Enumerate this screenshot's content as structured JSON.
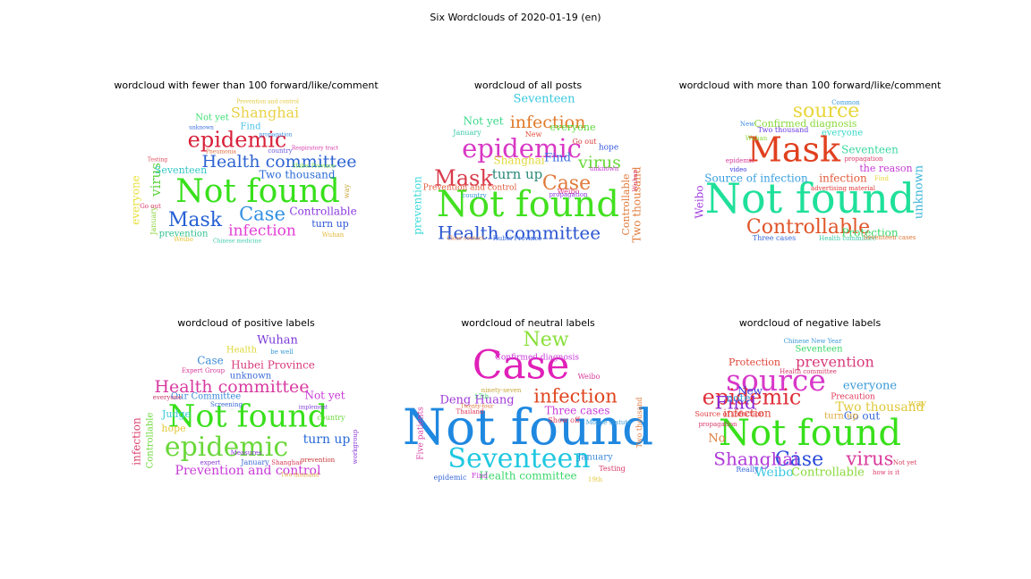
{
  "chart_data": {
    "type": "wordcloud",
    "title": "Six Wordclouds of 2020-01-19 (en)",
    "panels": [
      {
        "title": "wordcloud with fewer than 100 forward/like/comment",
        "words": [
          {
            "text": "Not found",
            "color": "#38e01b"
          },
          {
            "text": "epidemic",
            "color": "#d8203a"
          },
          {
            "text": "Health committee",
            "color": "#2d63d2"
          },
          {
            "text": "Mask",
            "color": "#2460d4"
          },
          {
            "text": "Case",
            "color": "#2f8fe0"
          },
          {
            "text": "infection",
            "color": "#e53fd6"
          },
          {
            "text": "Shanghai",
            "color": "#e8d248"
          },
          {
            "text": "Controllable",
            "color": "#8b38e0"
          },
          {
            "text": "Two thousand",
            "color": "#2a6bd6"
          },
          {
            "text": "virus",
            "color": "#5dd13c"
          },
          {
            "text": "turn up",
            "color": "#2f58d8"
          },
          {
            "text": "Seventeen",
            "color": "#34c6c8"
          },
          {
            "text": "prevention",
            "color": "#2fc08e"
          },
          {
            "text": "Not yet",
            "color": "#3fe075"
          },
          {
            "text": "Find",
            "color": "#4fc2e8"
          },
          {
            "text": "everyone",
            "color": "#e8e039"
          },
          {
            "text": "January",
            "color": "#8ad43c"
          },
          {
            "text": "Wuhan",
            "color": "#e0b83a"
          },
          {
            "text": "Weibo",
            "color": "#e8c63a"
          },
          {
            "text": "Testing",
            "color": "#e04a5a"
          },
          {
            "text": "Go out",
            "color": "#d83a6a"
          },
          {
            "text": "country",
            "color": "#6a5ae0"
          },
          {
            "text": "Respiratory tract",
            "color": "#d83aa8"
          },
          {
            "text": "way",
            "color": "#c8a83a"
          },
          {
            "text": "propagation",
            "color": "#3a8ae0"
          },
          {
            "text": "Prevention and control",
            "color": "#e0c83a"
          },
          {
            "text": "Hubei Province",
            "color": "#6ad83a"
          },
          {
            "text": "unknown",
            "color": "#3a6ae0"
          },
          {
            "text": "Pneumonia",
            "color": "#e06a3a"
          },
          {
            "text": "Chinese medicine",
            "color": "#3ac8a8"
          }
        ]
      },
      {
        "title": "wordcloud of all posts",
        "words": [
          {
            "text": "Not found",
            "color": "#42e020"
          },
          {
            "text": "epidemic",
            "color": "#d838c4"
          },
          {
            "text": "Health committee",
            "color": "#2a55cf"
          },
          {
            "text": "Mask",
            "color": "#d83a4a"
          },
          {
            "text": "Case",
            "color": "#e07a3a"
          },
          {
            "text": "infection",
            "color": "#e07a2a"
          },
          {
            "text": "virus",
            "color": "#6ad83a"
          },
          {
            "text": "Controllable",
            "color": "#e07a3a"
          },
          {
            "text": "Two thousand",
            "color": "#e07a3a"
          },
          {
            "text": "Seventeen",
            "color": "#3ac8e0"
          },
          {
            "text": "Not yet",
            "color": "#3ad88a"
          },
          {
            "text": "everyone",
            "color": "#5ad83a"
          },
          {
            "text": "Shanghai",
            "color": "#e0d83a"
          },
          {
            "text": "turn up",
            "color": "#2a8a7a"
          },
          {
            "text": "Find",
            "color": "#3a6ae0"
          },
          {
            "text": "prevention",
            "color": "#3ad8d8"
          },
          {
            "text": "Prevention and control",
            "color": "#e05a3a"
          },
          {
            "text": "hope",
            "color": "#3a5ae0"
          },
          {
            "text": "Go out",
            "color": "#d83a3a"
          },
          {
            "text": "Weibo",
            "color": "#e03a8a"
          },
          {
            "text": "Wuhan",
            "color": "#d83a6a"
          },
          {
            "text": "January",
            "color": "#3ac8a8"
          },
          {
            "text": "New",
            "color": "#e04a3a"
          },
          {
            "text": "country",
            "color": "#3a9ad8"
          },
          {
            "text": "propagation",
            "color": "#8a3ae0"
          },
          {
            "text": "unknown",
            "color": "#c83ad8"
          },
          {
            "text": "Hubei Province",
            "color": "#3a6ae0"
          },
          {
            "text": "Close contact",
            "color": "#e07a3a"
          }
        ]
      },
      {
        "title": "wordcloud with more than 100 forward/like/comment",
        "words": [
          {
            "text": "Not found",
            "color": "#1fe09a"
          },
          {
            "text": "Mask",
            "color": "#e0401f"
          },
          {
            "text": "source",
            "color": "#e8d63a"
          },
          {
            "text": "Controllable",
            "color": "#e0552a"
          },
          {
            "text": "Confirmed diagnosis",
            "color": "#8ad83a"
          },
          {
            "text": "Seventeen",
            "color": "#3ad8a0"
          },
          {
            "text": "Source of infection",
            "color": "#3aa0e0"
          },
          {
            "text": "infection",
            "color": "#e05a3a"
          },
          {
            "text": "Protection",
            "color": "#3ad86a"
          },
          {
            "text": "unknown",
            "color": "#3ab4d8"
          },
          {
            "text": "the reason",
            "color": "#c83ad8"
          },
          {
            "text": "Weibo",
            "color": "#a03ae0"
          },
          {
            "text": "everyone",
            "color": "#3ad8c8"
          },
          {
            "text": "Two thousand",
            "color": "#6a3ae0"
          },
          {
            "text": "video",
            "color": "#3a3ae0"
          },
          {
            "text": "epidemic",
            "color": "#d83a9a"
          },
          {
            "text": "New",
            "color": "#3a8ae0"
          },
          {
            "text": "Three cases",
            "color": "#3a6ad8"
          },
          {
            "text": "Health committee",
            "color": "#3ac8a8"
          },
          {
            "text": "Seventeen cases",
            "color": "#e07a3a"
          },
          {
            "text": "propagation",
            "color": "#d83a6a"
          },
          {
            "text": "advertising material",
            "color": "#e03a3a"
          },
          {
            "text": "Find",
            "color": "#e8d63a"
          },
          {
            "text": "Common",
            "color": "#3a9ae0"
          },
          {
            "text": "Wuhan",
            "color": "#8ad83a"
          }
        ]
      },
      {
        "title": "wordcloud of positive labels",
        "words": [
          {
            "text": "Not found",
            "color": "#38e01b"
          },
          {
            "text": "epidemic",
            "color": "#6ad83a"
          },
          {
            "text": "Health committee",
            "color": "#d83aa0"
          },
          {
            "text": "Prevention and control",
            "color": "#c83ad8"
          },
          {
            "text": "turn up",
            "color": "#2a6ad8"
          },
          {
            "text": "Hubei Province",
            "color": "#d83a7a"
          },
          {
            "text": "Wuhan",
            "color": "#7a3ad8"
          },
          {
            "text": "Case",
            "color": "#3a8ad8"
          },
          {
            "text": "Controllable",
            "color": "#6ad83a"
          },
          {
            "text": "infection",
            "color": "#d83a6a"
          },
          {
            "text": "Not yet",
            "color": "#c83ad8"
          },
          {
            "text": "Our Committee",
            "color": "#3a8ad8"
          },
          {
            "text": "unknown",
            "color": "#3a6ad8"
          },
          {
            "text": "Health",
            "color": "#e0d83a"
          },
          {
            "text": "hope",
            "color": "#e0c83a"
          },
          {
            "text": "Judge",
            "color": "#3ac8d8"
          },
          {
            "text": "everyone",
            "color": "#c83a6a"
          },
          {
            "text": "country",
            "color": "#6ad83a"
          },
          {
            "text": "January",
            "color": "#3a6ad8"
          },
          {
            "text": "Measures",
            "color": "#8a3ad8"
          },
          {
            "text": "Expert Group",
            "color": "#d83a9a"
          },
          {
            "text": "Shanghai",
            "color": "#d83a5a"
          },
          {
            "text": "be well",
            "color": "#3a9ad8"
          },
          {
            "text": "Screening",
            "color": "#3a6ad8"
          },
          {
            "text": "expert",
            "color": "#8a3ad8"
          },
          {
            "text": "implement",
            "color": "#7a3ad8"
          },
          {
            "text": "prevention",
            "color": "#c83a3a"
          },
          {
            "text": "Two thousand",
            "color": "#e0a83a"
          },
          {
            "text": "workgroup",
            "color": "#8a3ad8"
          }
        ]
      },
      {
        "title": "wordcloud of neutral labels",
        "words": [
          {
            "text": "Not found",
            "color": "#1f88e0"
          },
          {
            "text": "Case",
            "color": "#e01fb8"
          },
          {
            "text": "Seventeen",
            "color": "#1fc8e0"
          },
          {
            "text": "infection",
            "color": "#e0451f"
          },
          {
            "text": "New",
            "color": "#8ae03a"
          },
          {
            "text": "Deng Huang",
            "color": "#a03ad8"
          },
          {
            "text": "Three cases",
            "color": "#c83ad8"
          },
          {
            "text": "Health committee",
            "color": "#3ad86a"
          },
          {
            "text": "Confirmed diagnosis",
            "color": "#c83ad8"
          },
          {
            "text": "Thailand",
            "color": "#e03a5a"
          },
          {
            "text": "January",
            "color": "#3a8ad8"
          },
          {
            "text": "Testing",
            "color": "#d83a6a"
          },
          {
            "text": "Weibo",
            "color": "#d83a9a"
          },
          {
            "text": "Twenty-four",
            "color": "#e0783a"
          },
          {
            "text": "17th",
            "color": "#3ad86a"
          },
          {
            "text": "Find",
            "color": "#c83ad8"
          },
          {
            "text": "19th",
            "color": "#e0c83a"
          },
          {
            "text": "epidemic",
            "color": "#3a6ad8"
          },
          {
            "text": "Show off",
            "color": "#e03a5a"
          },
          {
            "text": "Mouse statute",
            "color": "#3a9ad8"
          },
          {
            "text": "Two thousand",
            "color": "#e0783a"
          },
          {
            "text": "Five patients",
            "color": "#d83aa0"
          },
          {
            "text": "ninety-seven",
            "color": "#c8a83a"
          }
        ]
      },
      {
        "title": "wordcloud of negative labels",
        "words": [
          {
            "text": "Not found",
            "color": "#38e01b"
          },
          {
            "text": "source",
            "color": "#d838c8"
          },
          {
            "text": "epidemic",
            "color": "#e0303a"
          },
          {
            "text": "Case",
            "color": "#2a4ad8"
          },
          {
            "text": "virus",
            "color": "#d83a9a"
          },
          {
            "text": "Shanghai",
            "color": "#b03ad8"
          },
          {
            "text": "Find",
            "color": "#8a2ad8"
          },
          {
            "text": "prevention",
            "color": "#d83a7a"
          },
          {
            "text": "Two thousand",
            "color": "#e0c83a"
          },
          {
            "text": "everyone",
            "color": "#3a9ad8"
          },
          {
            "text": "infection",
            "color": "#e0453a"
          },
          {
            "text": "Seventeen",
            "color": "#3ad86a"
          },
          {
            "text": "Protection",
            "color": "#e0453a"
          },
          {
            "text": "Weibo",
            "color": "#3ac8e0"
          },
          {
            "text": "Controllable",
            "color": "#8ad83a"
          },
          {
            "text": "New",
            "color": "#3a3ad8"
          },
          {
            "text": "note",
            "color": "#3aa0d8"
          },
          {
            "text": "No",
            "color": "#e0783a"
          },
          {
            "text": "Go out",
            "color": "#3a6ad8"
          },
          {
            "text": "turn up",
            "color": "#e0a83a"
          },
          {
            "text": "Precaution",
            "color": "#e03a5a"
          },
          {
            "text": "Source of infection",
            "color": "#e03a3a"
          },
          {
            "text": "Health committee",
            "color": "#d83a6a"
          },
          {
            "text": "Chinese New Year",
            "color": "#3a9ad8"
          },
          {
            "text": "way",
            "color": "#e0c83a"
          },
          {
            "text": "propagation",
            "color": "#d83a6a"
          },
          {
            "text": "Really",
            "color": "#3a6ad8"
          },
          {
            "text": "Not yet",
            "color": "#d83a5a"
          },
          {
            "text": "how is it",
            "color": "#e03a6a"
          }
        ]
      }
    ]
  }
}
